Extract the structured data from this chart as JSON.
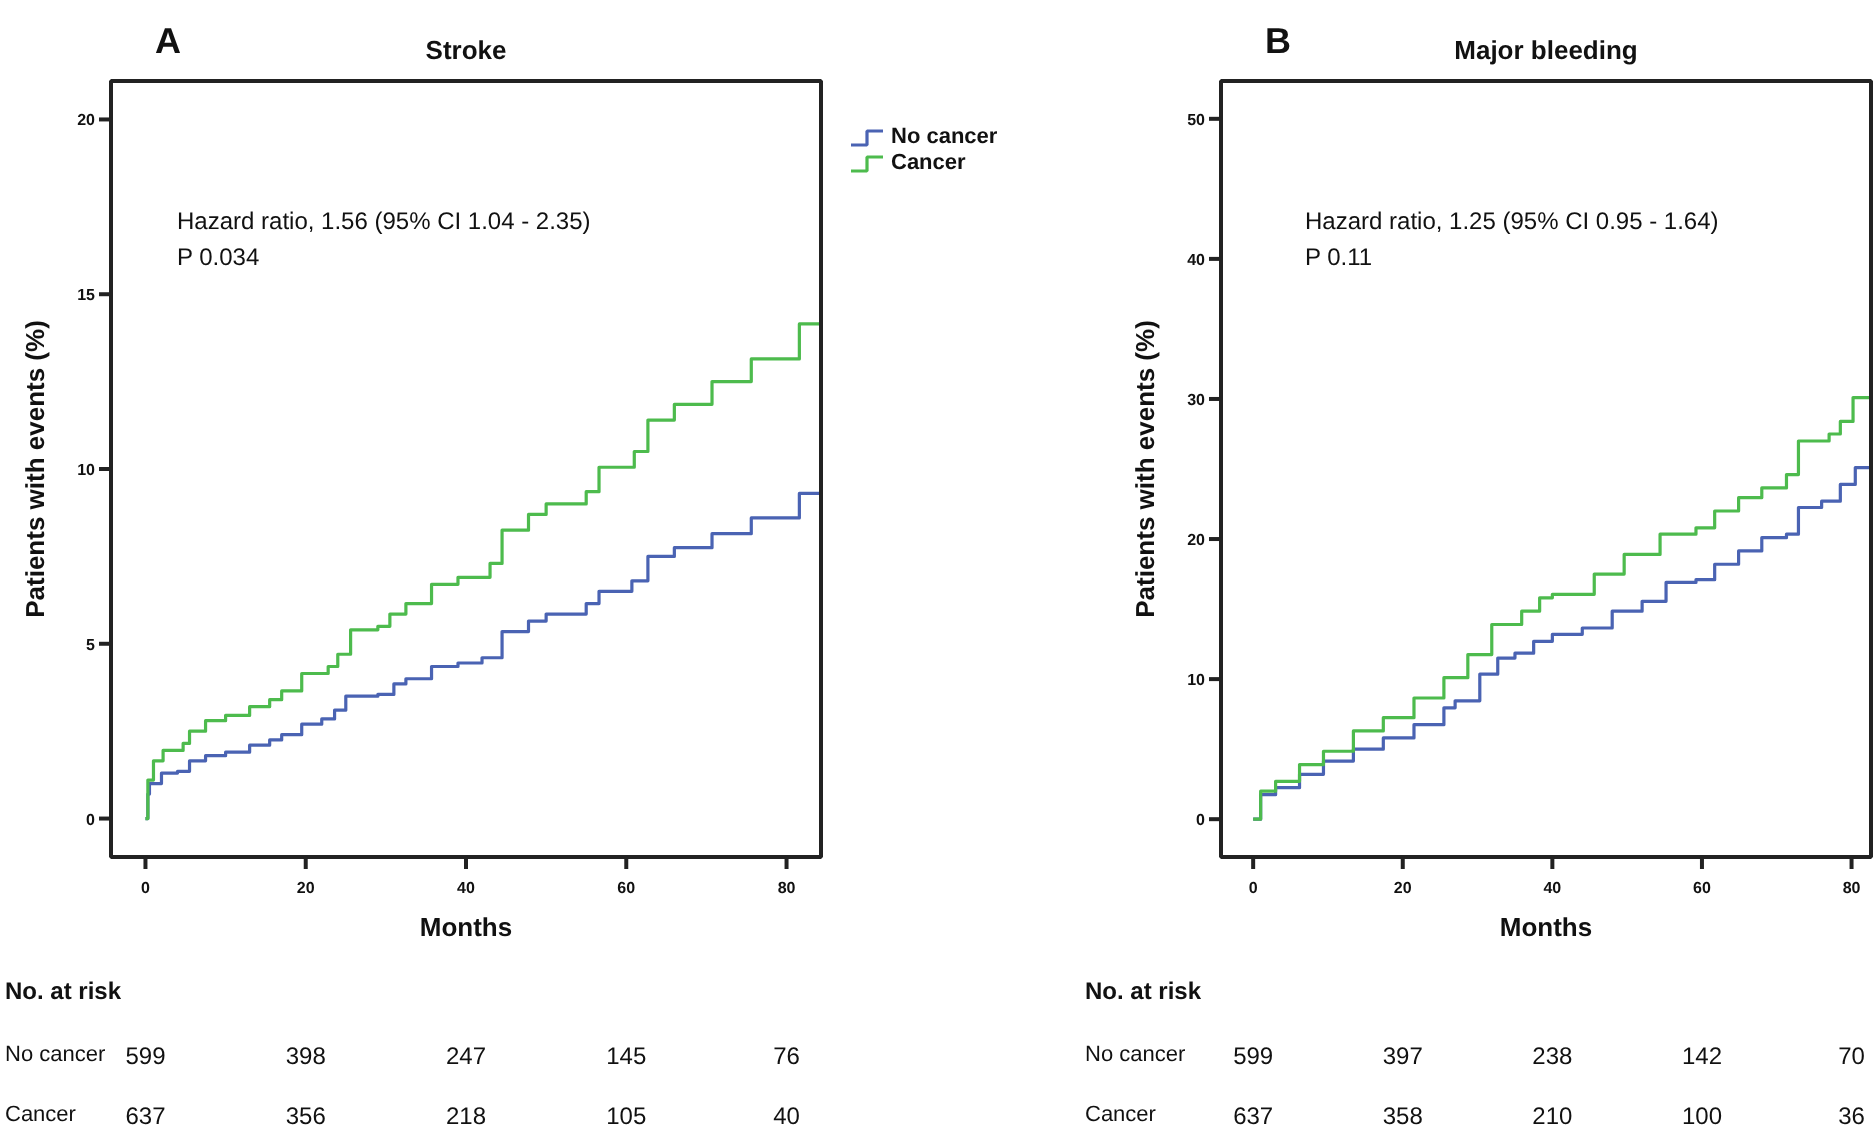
{
  "chart_data": [
    {
      "type": "step",
      "subtitle": "A",
      "title": "Stroke",
      "xlabel": "Months",
      "ylabel": "Patients with events (%)",
      "xlim": [
        -4.3,
        84.3
      ],
      "ylim": [
        -1.1,
        21.1
      ],
      "xticks": [
        0,
        20,
        40,
        60,
        80
      ],
      "yticks": [
        0,
        5,
        10,
        15,
        20
      ],
      "grid": false,
      "legend": "right",
      "series": [
        {
          "name": "No cancer",
          "color": "#4a63b3",
          "x": [
            0,
            0.3,
            0.5,
            2,
            4,
            5.5,
            7.5,
            10,
            13,
            15.5,
            17,
            19.5,
            22,
            23.6,
            25,
            29,
            31,
            32.5,
            35.7,
            39,
            42,
            44.5,
            47.8,
            50,
            55,
            56.6,
            60.7,
            62.7,
            66,
            70.7,
            75.6,
            81.6,
            84.3
          ],
          "values": [
            0,
            0.7,
            1.0,
            1.3,
            1.35,
            1.65,
            1.8,
            1.9,
            2.1,
            2.25,
            2.4,
            2.7,
            2.85,
            3.1,
            3.5,
            3.55,
            3.85,
            4.0,
            4.35,
            4.45,
            4.6,
            5.35,
            5.65,
            5.85,
            6.15,
            6.5,
            6.8,
            7.5,
            7.75,
            8.15,
            8.6,
            9.3,
            9.3
          ]
        },
        {
          "name": "Cancer",
          "color": "#4dbb4d",
          "x": [
            0,
            0.3,
            1,
            2.2,
            4.7,
            5.5,
            7.5,
            10,
            13,
            15.5,
            17,
            19.5,
            22.8,
            24,
            25.6,
            29,
            30.5,
            32.5,
            35.7,
            39,
            43,
            44.5,
            47.8,
            50,
            55,
            56.6,
            61,
            62.7,
            66,
            70.7,
            75.6,
            81.6,
            84.3
          ],
          "values": [
            0,
            1.1,
            1.65,
            1.95,
            2.15,
            2.5,
            2.8,
            2.95,
            3.2,
            3.4,
            3.65,
            4.15,
            4.35,
            4.7,
            5.4,
            5.5,
            5.85,
            6.15,
            6.7,
            6.9,
            7.3,
            8.25,
            8.7,
            9.0,
            9.35,
            10.05,
            10.5,
            11.4,
            11.85,
            12.5,
            13.15,
            14.15,
            14.15
          ]
        }
      ],
      "annotations": [
        "Hazard ratio, 1.56 (95% CI 1.04 - 2.35)\nP 0.034",
        "No. at risk",
        "No cancer",
        "599",
        "398",
        "247",
        "145",
        "76",
        "Cancer",
        "637",
        "356",
        "218",
        "105",
        "40"
      ]
    },
    {
      "type": "step",
      "subtitle": "B",
      "title": "Major bleeding",
      "xlabel": "Months",
      "ylabel": "Patients with events (%)",
      "xlim": [
        -4.3,
        82.6
      ],
      "ylim": [
        -2.7,
        52.7
      ],
      "xticks": [
        0,
        20,
        40,
        60,
        80
      ],
      "yticks": [
        0,
        10,
        20,
        30,
        40,
        50
      ],
      "grid": false,
      "legend": false,
      "series": [
        {
          "color": "#4a63b3",
          "x": [
            0,
            1,
            3,
            6.2,
            9.4,
            13.4,
            17.4,
            21.5,
            25.5,
            27,
            30.3,
            32.7,
            35,
            37.5,
            40,
            44,
            48,
            52,
            55.2,
            59.2,
            61.7,
            64.9,
            68,
            71.3,
            72.9,
            76,
            78.5,
            80.5,
            82.6
          ],
          "values": [
            0,
            1.75,
            2.25,
            3.2,
            4.15,
            5.0,
            5.8,
            6.75,
            7.95,
            8.45,
            10.35,
            11.5,
            11.85,
            12.7,
            13.2,
            13.65,
            14.85,
            15.55,
            16.9,
            17.1,
            18.2,
            19.15,
            20.1,
            20.35,
            22.25,
            22.7,
            23.9,
            25.1,
            25.1
          ]
        },
        {
          "color": "#4dbb4d",
          "x": [
            0,
            1,
            3,
            6.2,
            9.4,
            13.4,
            17.4,
            21.5,
            25.5,
            28.7,
            31.9,
            35.9,
            38.3,
            40,
            45.6,
            49.6,
            54.4,
            59.2,
            61.7,
            64.9,
            68,
            71.3,
            72.9,
            77,
            78.5,
            80.2,
            82.6
          ],
          "values": [
            0,
            2.0,
            2.7,
            3.9,
            4.85,
            6.3,
            7.25,
            8.65,
            10.1,
            11.75,
            13.9,
            14.85,
            15.8,
            16.05,
            17.5,
            18.9,
            20.35,
            20.8,
            22.0,
            22.95,
            23.65,
            24.6,
            27.0,
            27.5,
            28.4,
            30.1,
            30.1
          ]
        }
      ],
      "annotations": [
        "Hazard ratio, 1.25 (95% CI 0.95 - 1.64)\nP 0.11",
        "No. at risk",
        "No cancer",
        "599",
        "397",
        "238",
        "142",
        "70",
        "Cancer",
        "637",
        "358",
        "210",
        "100",
        "36"
      ]
    }
  ]
}
